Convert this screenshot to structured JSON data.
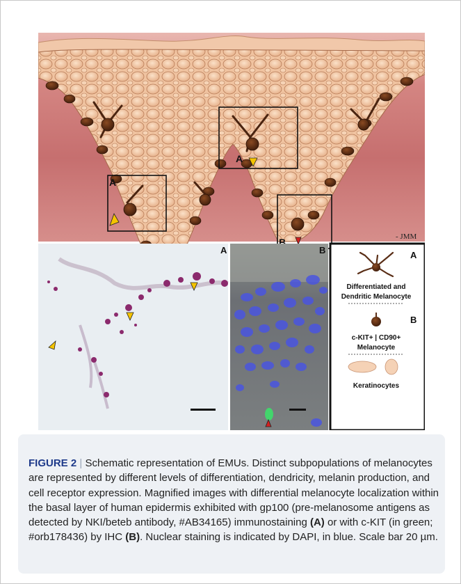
{
  "figure": {
    "schematic": {
      "credit": "- JMM",
      "panel_labels": [
        "A",
        "A",
        "B"
      ]
    },
    "micrograph_a": {
      "label": "A"
    },
    "micrograph_b": {
      "label": "B"
    },
    "legend": {
      "label_a": "A",
      "label_b": "B",
      "differentiated_line1": "Differentiated and",
      "differentiated_line2": "Dendritic Melanocyte",
      "ckit_line1": "c-KIT+ | CD90+",
      "ckit_line2": "Melanocyte",
      "keratinocytes": "Keratinocytes"
    },
    "colors": {
      "dermis": "#c97575",
      "keratinocyte": "#f2c7a4",
      "melanocyte": "#5a2e16",
      "arrow_yellow": "#f5c400",
      "arrow_red": "#d42020",
      "dapi_blue": "#4a55e0"
    }
  },
  "caption": {
    "figure_label": "FIGURE 2",
    "separator": "|",
    "text_1": "Schematic representation of EMUs. Distinct subpopulations of melanocytes are represented by different levels of differentiation, dendricity, melanin production, and cell receptor expression. Magnified images with differential melanocyte localization within the basal layer of human epidermis exhibited with gp100 (pre-melanosome antigens as detected by NKI/beteb antibody, #AB34165) immunostaining",
    "ref_a": "(A)",
    "text_2": "or with c-KIT (in green; #orb178436) by IHC",
    "ref_b": "(B)",
    "text_3": ". Nuclear staining is indicated by DAPI, in blue. Scale bar 20 µm."
  }
}
